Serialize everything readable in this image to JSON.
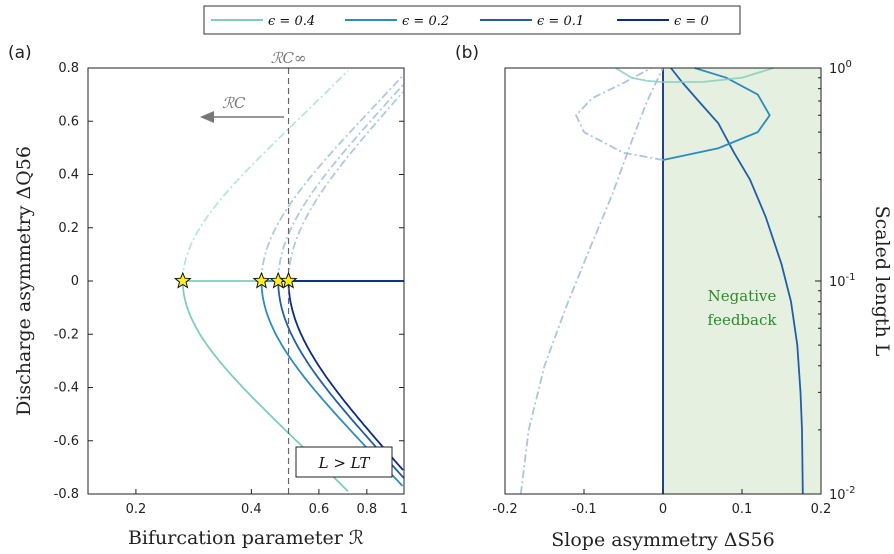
{
  "colors": {
    "eps04": "#7fcdbb",
    "eps02": "#2b8cbe",
    "eps01": "#225ea8",
    "eps0": "#0c2c84",
    "unstable": "#a6bddb",
    "feedback_fill": "#e5f0e1",
    "feedback_text": "#2e8b2e",
    "star": "#ffee1a"
  },
  "legend": [
    "ϵ = 0.4",
    "ϵ = 0.2",
    "ϵ = 0.1",
    "ϵ = 0"
  ],
  "chart_data": [
    {
      "panel": "(a)",
      "type": "line",
      "xlabel": "Bifurcation parameter ℛ",
      "ylabel": "Discharge asymmetry ΔQ56",
      "xscale": "log",
      "xlim": [
        0.15,
        1.0
      ],
      "ylim": [
        -0.8,
        0.8
      ],
      "xticks": [
        "0.2",
        "0.4",
        "0.6",
        "0.8",
        "1"
      ],
      "yticks": [
        "0.8",
        "0.6",
        "0.4",
        "0.2",
        "0",
        "-0.2",
        "-0.4",
        "-0.6",
        "-0.8"
      ],
      "vline_label": "ℛC∞",
      "vline_x": 0.5,
      "arrow_label": "ℛC",
      "box_label": "L > LT",
      "series": [
        {
          "name": "ϵ = 0.4",
          "turn": 0.265,
          "k": 0.72
        },
        {
          "name": "ϵ = 0.2",
          "turn": 0.425,
          "k": 0.955
        },
        {
          "name": "ϵ = 0.1",
          "turn": 0.47,
          "k": 0.965
        },
        {
          "name": "ϵ = 0",
          "turn": 0.5,
          "k": 0.98
        }
      ],
      "stars": [
        {
          "x": 0.265,
          "y": 0
        },
        {
          "x": 0.425,
          "y": 0
        },
        {
          "x": 0.47,
          "y": 0
        },
        {
          "x": 0.5,
          "y": 0
        }
      ]
    },
    {
      "panel": "(b)",
      "type": "line",
      "xlabel": "Slope asymmetry ΔS56",
      "ylabel": "Scaled length L",
      "yscale": "log",
      "xlim": [
        -0.2,
        0.2
      ],
      "ylim": [
        0.01,
        1.0
      ],
      "xticks": [
        "-0.2",
        "-0.1",
        "0",
        "0.1",
        "0.2"
      ],
      "yticks": [
        "10^0",
        "10^-1",
        "10^-2"
      ],
      "region_label": [
        "Negative",
        "feedback"
      ],
      "region": {
        "x": [
          0,
          0.2
        ]
      },
      "series": [
        {
          "name": "ϵ = 0",
          "x": [
            0,
            0
          ],
          "y": [
            0.01,
            1.0
          ]
        },
        {
          "name": "ϵ = 0.1",
          "y": [
            1.0,
            0.85,
            0.7,
            0.55,
            0.4,
            0.3,
            0.2,
            0.12,
            0.08,
            0.05,
            0.03,
            0.02,
            0.01
          ],
          "x": [
            0.01,
            0.025,
            0.045,
            0.07,
            0.09,
            0.11,
            0.13,
            0.15,
            0.162,
            0.17,
            0.174,
            0.176,
            0.177
          ]
        },
        {
          "name": "ϵ = 0.2",
          "y": [
            1.0,
            0.9,
            0.75,
            0.6,
            0.5,
            0.42,
            0.37
          ],
          "x": [
            0.04,
            0.08,
            0.12,
            0.135,
            0.12,
            0.07,
            0.0
          ]
        }
      ]
    }
  ]
}
